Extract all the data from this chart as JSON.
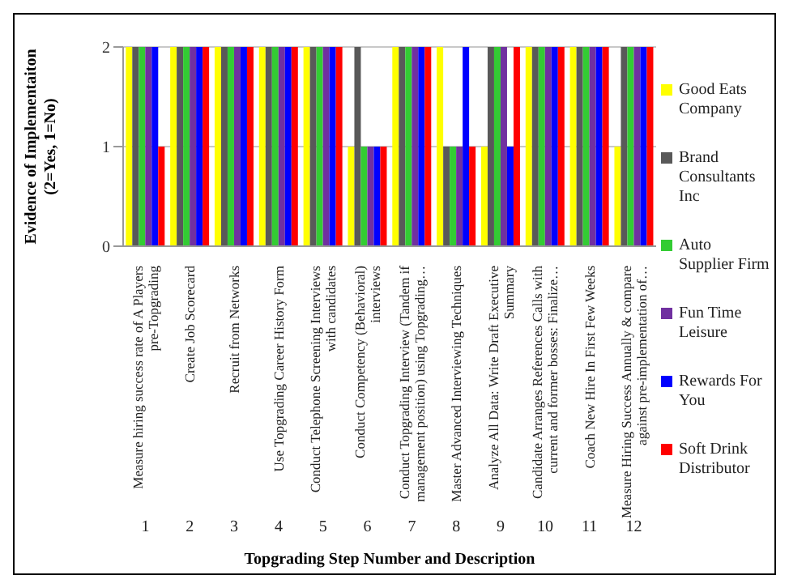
{
  "chart_data": {
    "type": "bar",
    "xlabel": "Topgrading Step Number and Description",
    "ylabel": "Evidence of Implementaiton (2=Yes, 1=No)",
    "categories": [
      "Measure hiring success rate of A Players pre-Topgrading",
      "Create Job Scorecard",
      "Recruit from Networks",
      "Use Topgrading Career History Form",
      "Conduct Telephone Screening Interviews with candidates",
      "Conduct Competency (Behavioral) interviews",
      "Conduct Topgrading Interview (Tandem if management position) using Topgrading…",
      "Master Advanced Interviewing Techniques",
      "Analyze All Data: Write Draft Executive Summary",
      "Candidate Arranges References Calls with current and former bosses: Finalize…",
      "Coach New Hire In First Few Weeks",
      "Measure Hiring Success Annually & compare against pre-implementation of…"
    ],
    "annotations": [
      "1",
      "2",
      "3",
      "4",
      "5",
      "6",
      "7",
      "8",
      "9",
      "10",
      "11",
      "12"
    ],
    "series": [
      {
        "name": "Good Eats Company",
        "color": "#ffff00",
        "values": [
          2,
          2,
          2,
          2,
          2,
          1,
          2,
          2,
          1,
          2,
          2,
          1
        ]
      },
      {
        "name": "Brand Consultants Inc",
        "color": "#595959",
        "values": [
          2,
          2,
          2,
          2,
          2,
          2,
          2,
          1,
          2,
          2,
          2,
          2
        ]
      },
      {
        "name": "Auto Supplier Firm",
        "color": "#33cc33",
        "values": [
          2,
          2,
          2,
          2,
          2,
          1,
          2,
          1,
          2,
          2,
          2,
          2
        ]
      },
      {
        "name": "Fun Time Leisure",
        "color": "#7030a0",
        "values": [
          2,
          2,
          2,
          2,
          2,
          1,
          2,
          1,
          2,
          2,
          2,
          2
        ]
      },
      {
        "name": "Rewards For You",
        "color": "#0000ff",
        "values": [
          2,
          2,
          2,
          2,
          2,
          1,
          2,
          2,
          1,
          2,
          2,
          2
        ]
      },
      {
        "name": "Soft Drink Distributor",
        "color": "#ff0000",
        "values": [
          1,
          2,
          2,
          2,
          2,
          1,
          2,
          1,
          2,
          2,
          2,
          2
        ]
      }
    ],
    "ylim": [
      0,
      2
    ],
    "yticks": [
      0,
      1,
      2
    ],
    "grid": "y",
    "legend": "right"
  }
}
